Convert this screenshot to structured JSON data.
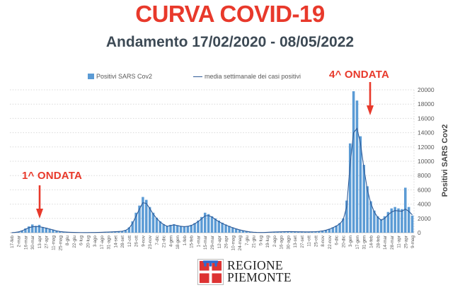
{
  "page": {
    "title": "CURVA COVID-19",
    "subtitle": "Andamento 17/02/2020 - 08/05/2022"
  },
  "legend": [
    {
      "label": "Positivi SARS Cov2",
      "marker": "square",
      "color": "#5b9bd5"
    },
    {
      "label": "media settimanale dei casi positivi",
      "marker": "line",
      "color": "#2e5a96"
    }
  ],
  "annotations": [
    {
      "label": "1^ ONDATA",
      "arrow": "down",
      "points_to": "first wave peak (spring 2020)"
    },
    {
      "label": "4^ ONDATA",
      "arrow": "down",
      "points_to": "fourth wave peak (january 2022)"
    }
  ],
  "footer": {
    "logo_line1": "REGIONE",
    "logo_line2": "PIEMONTE"
  },
  "colors": {
    "accent_red": "#e8392b",
    "subtitle_color": "#3d4a55",
    "bar": "#5b9bd5",
    "line": "#2e5a96",
    "grid": "#d9d9d9",
    "axis_text": "#595959",
    "logo_red": "#dd3333",
    "logo_blue": "#2f6bce",
    "logo_text": "#222222"
  },
  "chart_data": {
    "type": "bar",
    "title": "CURVA COVID-19",
    "subtitle": "Andamento 17/02/2020 - 08/05/2022",
    "ylabel": "Positivi SARS Cov2",
    "ylim": [
      0,
      20000
    ],
    "yticks": [
      0,
      2000,
      4000,
      6000,
      8000,
      10000,
      12000,
      14000,
      16000,
      18000,
      20000
    ],
    "grid": "dotted horizontal",
    "legend_position": "top",
    "x_start": "17-feb-2020",
    "x_end": "9-mag-2022",
    "sampling": "weekly",
    "x_tick_labels": [
      "17-feb",
      "2-mar",
      "16-mar",
      "30-mar",
      "13-apr",
      "27-apr",
      "11-mag",
      "25-mag",
      "8-giu",
      "22-giu",
      "6-lug",
      "20-lug",
      "3-ago",
      "17-ago",
      "31-ago",
      "14-set",
      "28-set",
      "12-ott",
      "26-ott",
      "9-nov",
      "23-nov",
      "7-dic",
      "21-dic",
      "4-gen",
      "18-gen",
      "1-feb",
      "15-feb",
      "1-mar",
      "15-mar",
      "29-mar",
      "12-apr",
      "26-apr",
      "10-mag",
      "24-mag",
      "7-giu",
      "21-giu",
      "5-lug",
      "19-lug",
      "2-ago",
      "16-ago",
      "30-ago",
      "13-set",
      "27-set",
      "11-ott",
      "25-ott",
      "8-nov",
      "22-nov",
      "6-dic",
      "20-dic",
      "3-gen",
      "17-gen",
      "31-gen",
      "14-feb",
      "28-feb",
      "14-mar",
      "28-mar",
      "11-apr",
      "25-apr",
      "9-mag"
    ],
    "series": [
      {
        "name": "Positivi SARS Cov2",
        "type": "bar",
        "color": "#5b9bd5",
        "values": [
          5,
          60,
          150,
          320,
          600,
          880,
          1150,
          950,
          1100,
          800,
          700,
          550,
          420,
          280,
          190,
          130,
          90,
          60,
          45,
          35,
          28,
          22,
          24,
          28,
          35,
          45,
          65,
          85,
          105,
          125,
          150,
          185,
          230,
          380,
          750,
          1600,
          2800,
          3800,
          5000,
          4600,
          3600,
          2800,
          2100,
          1600,
          1200,
          950,
          1100,
          1200,
          1050,
          950,
          900,
          950,
          1100,
          1350,
          1700,
          2200,
          2800,
          2600,
          2300,
          2000,
          1700,
          1400,
          1150,
          950,
          750,
          580,
          430,
          310,
          210,
          130,
          80,
          45,
          32,
          38,
          60,
          90,
          115,
          130,
          145,
          160,
          170,
          165,
          155,
          145,
          135,
          125,
          128,
          140,
          160,
          200,
          270,
          380,
          540,
          750,
          1000,
          1350,
          2000,
          4500,
          12500,
          19800,
          18500,
          13500,
          9500,
          6500,
          4400,
          3100,
          2300,
          1900,
          2300,
          2900,
          3400,
          3600,
          3400,
          3300,
          6300,
          3600,
          2400
        ]
      },
      {
        "name": "media settimanale dei casi positivi",
        "type": "line",
        "color": "#2e5a96",
        "values": [
          3,
          40,
          120,
          260,
          480,
          700,
          820,
          870,
          840,
          750,
          640,
          520,
          390,
          260,
          170,
          115,
          80,
          55,
          40,
          32,
          26,
          22,
          23,
          27,
          33,
          42,
          60,
          80,
          100,
          115,
          140,
          170,
          210,
          330,
          620,
          1300,
          2300,
          3300,
          4200,
          4100,
          3400,
          2600,
          2000,
          1500,
          1150,
          900,
          1000,
          1100,
          1000,
          900,
          850,
          900,
          1000,
          1250,
          1550,
          1950,
          2350,
          2400,
          2200,
          1850,
          1550,
          1300,
          1080,
          880,
          700,
          540,
          400,
          290,
          195,
          120,
          72,
          42,
          30,
          35,
          55,
          85,
          105,
          120,
          135,
          150,
          160,
          155,
          145,
          135,
          128,
          120,
          122,
          132,
          150,
          185,
          250,
          350,
          500,
          700,
          930,
          1250,
          1800,
          3600,
          9500,
          14000,
          14600,
          12500,
          9000,
          6000,
          4100,
          2900,
          2150,
          1750,
          2000,
          2500,
          2900,
          3100,
          3050,
          3000,
          3300,
          3000,
          2500
        ]
      }
    ]
  }
}
